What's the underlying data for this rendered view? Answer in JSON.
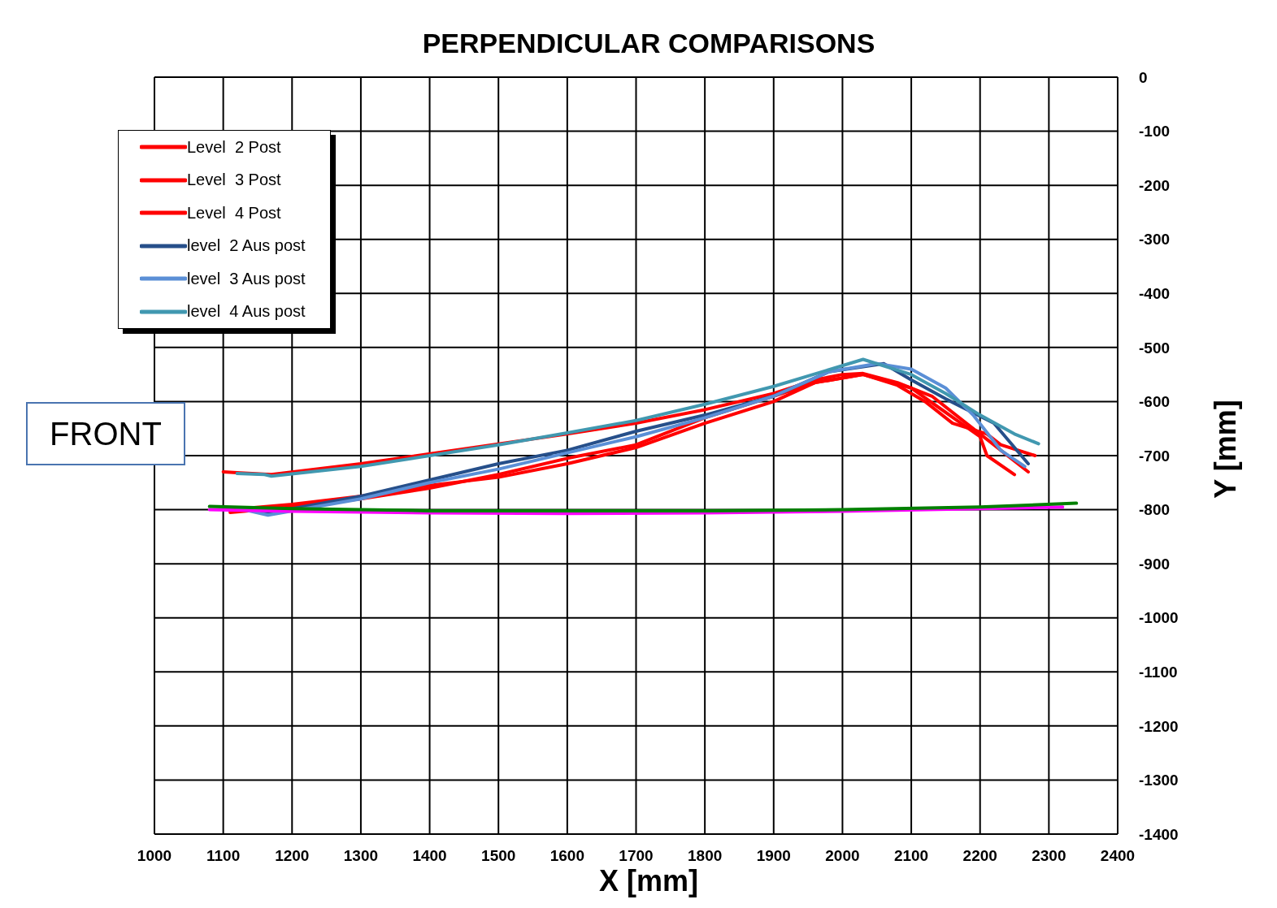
{
  "chart_data": {
    "type": "line",
    "title": "PERPENDICULAR COMPARISONS",
    "xlabel": "X [mm]",
    "ylabel": "Y [mm]",
    "annotations": [
      "FRONT"
    ],
    "xlim": [
      1000,
      2400
    ],
    "xticks": [
      1000,
      1100,
      1200,
      1300,
      1400,
      1500,
      1600,
      1700,
      1800,
      1900,
      2000,
      2100,
      2200,
      2300,
      2400
    ],
    "ylim": [
      -1400,
      0
    ],
    "yticks": [
      0,
      -100,
      -200,
      -300,
      -400,
      -500,
      -600,
      -700,
      -800,
      -900,
      -1000,
      -1100,
      -1200,
      -1300,
      -1400
    ],
    "grid": true,
    "legend": "top left",
    "marker": "none",
    "line_style": "solid",
    "series": [
      {
        "name": "Level  2 Post",
        "color": "#ff0000",
        "x": [
          1100,
          1125,
          1170,
          1300,
          1600,
          1700,
          1800,
          1900,
          1960,
          2000,
          2030,
          2080,
          2130,
          2180,
          2220,
          2250,
          2270
        ],
        "values": [
          -730,
          -732,
          -735,
          -715,
          -660,
          -640,
          -615,
          -585,
          -560,
          -550,
          -548,
          -565,
          -590,
          -640,
          -680,
          -710,
          -730
        ]
      },
      {
        "name": "Level  3 Post",
        "color": "#ff0000",
        "x": [
          1110,
          1200,
          1300,
          1400,
          1500,
          1600,
          1700,
          1800,
          1900,
          1960,
          2030,
          2080,
          2120,
          2160,
          2210,
          2230,
          2280
        ],
        "values": [
          -800,
          -790,
          -775,
          -755,
          -740,
          -715,
          -685,
          -640,
          -600,
          -565,
          -550,
          -570,
          -600,
          -640,
          -660,
          -680,
          -700
        ]
      },
      {
        "name": "Level  4 Post",
        "color": "#ff0000",
        "x": [
          1110,
          1200,
          1300,
          1400,
          1500,
          1600,
          1700,
          1800,
          1900,
          1960,
          2030,
          2100,
          2150,
          2200,
          2210,
          2250
        ],
        "values": [
          -805,
          -795,
          -780,
          -760,
          -735,
          -705,
          -680,
          -630,
          -590,
          -565,
          -550,
          -575,
          -620,
          -665,
          -700,
          -735
        ]
      },
      {
        "name": "level  2 Aus post",
        "color": "#264f8a",
        "x": [
          1120,
          1170,
          1300,
          1400,
          1500,
          1600,
          1700,
          1800,
          1900,
          1980,
          2060,
          2100,
          2150,
          2220,
          2270
        ],
        "values": [
          -797,
          -805,
          -775,
          -745,
          -715,
          -690,
          -655,
          -625,
          -590,
          -545,
          -530,
          -560,
          -595,
          -640,
          -715
        ]
      },
      {
        "name": "level  3 Aus post",
        "color": "#5b8fd6",
        "x": [
          1120,
          1165,
          1300,
          1400,
          1500,
          1600,
          1700,
          1800,
          1900,
          1980,
          2050,
          2100,
          2150,
          2190,
          2230,
          2265
        ],
        "values": [
          -797,
          -810,
          -780,
          -750,
          -725,
          -695,
          -665,
          -630,
          -590,
          -545,
          -530,
          -540,
          -575,
          -625,
          -690,
          -720
        ]
      },
      {
        "name": "level  4 Aus post",
        "color": "#4198b0",
        "x": [
          1120,
          1160,
          1170,
          1300,
          1400,
          1500,
          1600,
          1700,
          1800,
          1900,
          2030,
          2100,
          2150,
          2200,
          2250,
          2285
        ],
        "values": [
          -733,
          -735,
          -738,
          -720,
          -700,
          -680,
          -658,
          -635,
          -605,
          -572,
          -522,
          -550,
          -585,
          -625,
          -660,
          -678
        ]
      },
      {
        "color": "#ff00ff",
        "x": [
          1080,
          1200,
          1400,
          1600,
          1800,
          2000,
          2200,
          2320
        ],
        "values": [
          -800,
          -803,
          -806,
          -807,
          -806,
          -803,
          -798,
          -795
        ]
      },
      {
        "color": "#008000",
        "x": [
          1080,
          1200,
          1400,
          1600,
          1800,
          2000,
          2200,
          2340
        ],
        "values": [
          -794,
          -798,
          -802,
          -802,
          -802,
          -800,
          -795,
          -788
        ]
      }
    ]
  }
}
